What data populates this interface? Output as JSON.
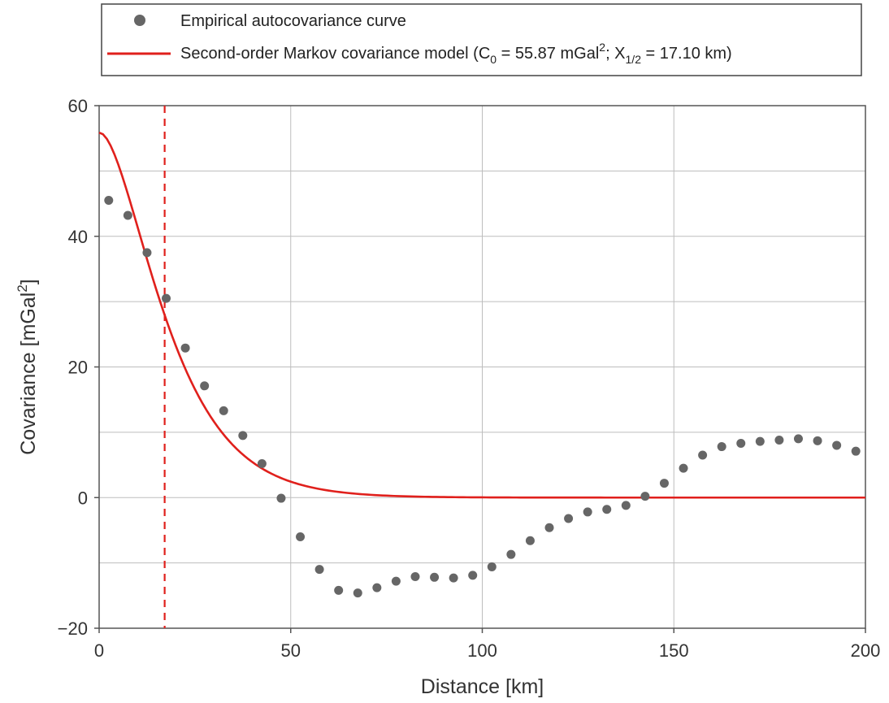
{
  "chart_data": {
    "type": "scatter",
    "xlabel": "Distance [km]",
    "ylabel": "Covariance [mGal",
    "ylabel_sup": "2",
    "ylabel_end": "]",
    "xlim": [
      0,
      200
    ],
    "ylim": [
      -20,
      60
    ],
    "x_ticks": [
      0,
      50,
      100,
      150,
      200
    ],
    "y_ticks": [
      -20,
      0,
      20,
      40,
      60
    ],
    "x_tick_labels": [
      "0",
      "50",
      "100",
      "150",
      "200"
    ],
    "y_tick_labels": [
      "−20",
      "0",
      "20",
      "40",
      "60"
    ],
    "grid": true,
    "legend_position": "top",
    "series": [
      {
        "name": "Empirical autocovariance curve",
        "kind": "scatter",
        "color": "#666666",
        "x": [
          2.5,
          7.5,
          12.5,
          17.5,
          22.5,
          27.5,
          32.5,
          37.5,
          42.5,
          47.5,
          52.5,
          57.5,
          62.5,
          67.5,
          72.5,
          77.5,
          82.5,
          87.5,
          92.5,
          97.5,
          102.5,
          107.5,
          112.5,
          117.5,
          122.5,
          127.5,
          132.5,
          137.5,
          142.5,
          147.5,
          152.5,
          157.5,
          162.5,
          167.5,
          172.5,
          177.5,
          182.5,
          187.5,
          192.5,
          197.5
        ],
        "y": [
          45.5,
          43.2,
          37.5,
          30.5,
          22.9,
          17.1,
          13.3,
          9.5,
          5.2,
          -0.1,
          -6.0,
          -11.0,
          -14.2,
          -14.6,
          -13.8,
          -12.8,
          -12.1,
          -12.2,
          -12.3,
          -11.9,
          -10.6,
          -8.7,
          -6.6,
          -4.6,
          -3.2,
          -2.2,
          -1.8,
          -1.2,
          0.2,
          2.2,
          4.5,
          6.5,
          7.8,
          8.3,
          8.6,
          8.8,
          9.0,
          8.7,
          8.0,
          7.1
        ]
      },
      {
        "name_prefix": "Second-order Markov covariance model (C",
        "name_c0_sub": "0",
        "name_mid1": " = 55.87 mGal",
        "name_sup": "2",
        "name_mid2": "; X",
        "name_x_sub": "1/2",
        "name_suffix": " = 17.10 km)",
        "kind": "line",
        "color": "#e0201c",
        "model": "second-order Markov",
        "C0": 55.87,
        "X_half": 17.1
      }
    ],
    "annotations": [
      {
        "kind": "vertical-dashed-line",
        "x": 17.1,
        "color": "#e0201c"
      }
    ]
  }
}
